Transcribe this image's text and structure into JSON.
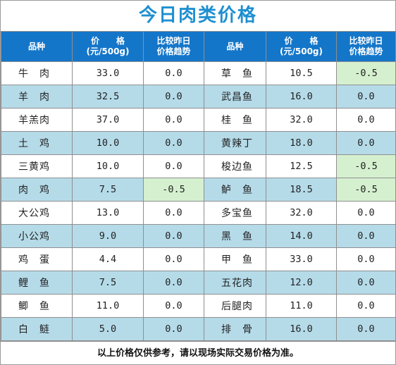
{
  "title": "今日肉类价格",
  "headers": {
    "item": "品种",
    "price_line1": "价　　格",
    "price_line2": "(元/500g)",
    "trend_line1": "比较昨日",
    "trend_line2": "价格趋势"
  },
  "rows": [
    {
      "left": {
        "name": "牛　肉",
        "price": "33.0",
        "trend": "0.0"
      },
      "right": {
        "name": "草　鱼",
        "price": "10.5",
        "trend": "-0.5"
      }
    },
    {
      "left": {
        "name": "羊　肉",
        "price": "32.5",
        "trend": "0.0"
      },
      "right": {
        "name": "武昌鱼",
        "price": "16.0",
        "trend": "0.0"
      }
    },
    {
      "left": {
        "name": "羊羔肉",
        "price": "37.0",
        "trend": "0.0"
      },
      "right": {
        "name": "桂　鱼",
        "price": "32.0",
        "trend": "0.0"
      }
    },
    {
      "left": {
        "name": "土　鸡",
        "price": "10.0",
        "trend": "0.0"
      },
      "right": {
        "name": "黄辣丁",
        "price": "18.0",
        "trend": "0.0"
      }
    },
    {
      "left": {
        "name": "三黄鸡",
        "price": "10.0",
        "trend": "0.0"
      },
      "right": {
        "name": "梭边鱼",
        "price": "12.5",
        "trend": "-0.5"
      }
    },
    {
      "left": {
        "name": "肉　鸡",
        "price": "7.5",
        "trend": "-0.5"
      },
      "right": {
        "name": "鲈　鱼",
        "price": "18.5",
        "trend": "-0.5"
      }
    },
    {
      "left": {
        "name": "大公鸡",
        "price": "13.0",
        "trend": "0.0"
      },
      "right": {
        "name": "多宝鱼",
        "price": "32.0",
        "trend": "0.0"
      }
    },
    {
      "left": {
        "name": "小公鸡",
        "price": "9.0",
        "trend": "0.0"
      },
      "right": {
        "name": "黑　鱼",
        "price": "14.0",
        "trend": "0.0"
      }
    },
    {
      "left": {
        "name": "鸡　蛋",
        "price": "4.4",
        "trend": "0.0"
      },
      "right": {
        "name": "甲　鱼",
        "price": "33.0",
        "trend": "0.0"
      }
    },
    {
      "left": {
        "name": "鲤　鱼",
        "price": "7.5",
        "trend": "0.0"
      },
      "right": {
        "name": "五花肉",
        "price": "12.0",
        "trend": "0.0"
      }
    },
    {
      "left": {
        "name": "鲫　鱼",
        "price": "11.0",
        "trend": "0.0"
      },
      "right": {
        "name": "后腿肉",
        "price": "11.0",
        "trend": "0.0"
      }
    },
    {
      "left": {
        "name": "白　鲢",
        "price": "5.0",
        "trend": "0.0"
      },
      "right": {
        "name": "排　骨",
        "price": "16.0",
        "trend": "0.0"
      }
    }
  ],
  "footer": "以上价格仅供参考，请以现场实际交易价格为准。",
  "colors": {
    "title": "#1e8fd0",
    "header_bg": "#1476c9",
    "alt_row_bg": "#b5dbe9",
    "decrease_bg": "#d5f0cf"
  }
}
